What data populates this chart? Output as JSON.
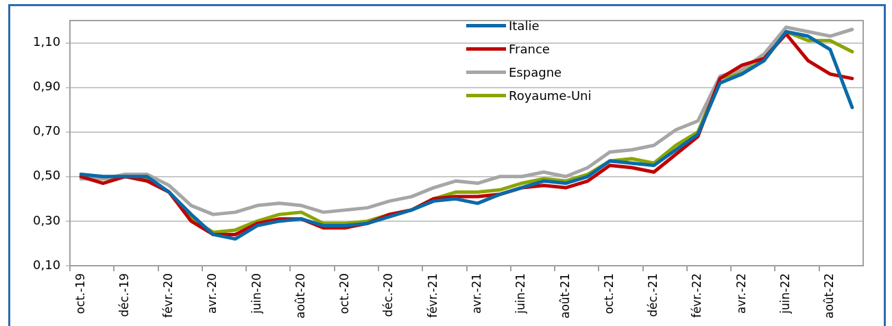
{
  "chart_data": {
    "type": "line",
    "categories": [
      "oct.-19",
      null,
      "déc.-19",
      null,
      "févr.-20",
      null,
      "avr.-20",
      null,
      "juin-20",
      null,
      "août-20",
      null,
      "oct.-20",
      null,
      "déc.-20",
      null,
      "févr.-21",
      null,
      "avr.-21",
      null,
      "juin-21",
      null,
      "août-21",
      null,
      "oct.-21",
      null,
      "déc.-21",
      null,
      "févr.-22",
      null,
      "avr.-22",
      null,
      "juin-22",
      null,
      "août-22",
      null
    ],
    "series": [
      {
        "name": "Italie",
        "color": "#0a6aa8",
        "values": [
          0.51,
          0.5,
          0.5,
          0.5,
          0.43,
          0.33,
          0.24,
          0.22,
          0.28,
          0.3,
          0.31,
          0.28,
          0.28,
          0.29,
          0.32,
          0.35,
          0.39,
          0.4,
          0.38,
          0.42,
          0.45,
          0.48,
          0.47,
          0.5,
          0.57,
          0.56,
          0.55,
          0.62,
          0.69,
          0.92,
          0.96,
          1.02,
          1.15,
          1.13,
          1.07,
          0.81
        ]
      },
      {
        "name": "France",
        "color": "#c00000",
        "values": [
          0.5,
          0.47,
          0.5,
          0.48,
          0.43,
          0.3,
          0.24,
          0.24,
          0.29,
          0.31,
          0.31,
          0.27,
          0.27,
          0.29,
          0.33,
          0.35,
          0.4,
          0.41,
          0.41,
          0.42,
          0.45,
          0.46,
          0.45,
          0.48,
          0.55,
          0.54,
          0.52,
          0.6,
          0.68,
          0.94,
          1.0,
          1.03,
          1.14,
          1.02,
          0.96,
          0.94
        ]
      },
      {
        "name": "Espagne",
        "color": "#a6a6a6",
        "values": [
          0.49,
          0.49,
          0.51,
          0.51,
          0.46,
          0.37,
          0.33,
          0.34,
          0.37,
          0.38,
          0.37,
          0.34,
          0.35,
          0.36,
          0.39,
          0.41,
          0.45,
          0.48,
          0.47,
          0.5,
          0.5,
          0.52,
          0.5,
          0.54,
          0.61,
          0.62,
          0.64,
          0.71,
          0.75,
          0.95,
          0.98,
          1.05,
          1.17,
          1.15,
          1.13,
          1.16
        ]
      },
      {
        "name": "Royaume-Uni",
        "color": "#8aa500",
        "values": [
          0.5,
          0.49,
          0.5,
          0.49,
          0.43,
          0.31,
          0.25,
          0.26,
          0.3,
          0.33,
          0.34,
          0.29,
          0.29,
          0.3,
          0.33,
          0.35,
          0.4,
          0.43,
          0.43,
          0.44,
          0.47,
          0.49,
          0.48,
          0.51,
          0.57,
          0.58,
          0.56,
          0.64,
          0.7,
          0.94,
          0.97,
          1.02,
          1.15,
          1.11,
          1.11,
          1.06
        ]
      }
    ],
    "ylim": [
      0.1,
      1.2
    ],
    "yticks": [
      {
        "value": 0.1,
        "label": "0,10"
      },
      {
        "value": 0.3,
        "label": "0,30"
      },
      {
        "value": 0.5,
        "label": "0,50"
      },
      {
        "value": 0.7,
        "label": "0,70"
      },
      {
        "value": 0.9,
        "label": "0,90"
      },
      {
        "value": 1.1,
        "label": "1,10"
      }
    ],
    "grid": "y",
    "legend": "top",
    "marker": "none",
    "line_style": "solid"
  }
}
